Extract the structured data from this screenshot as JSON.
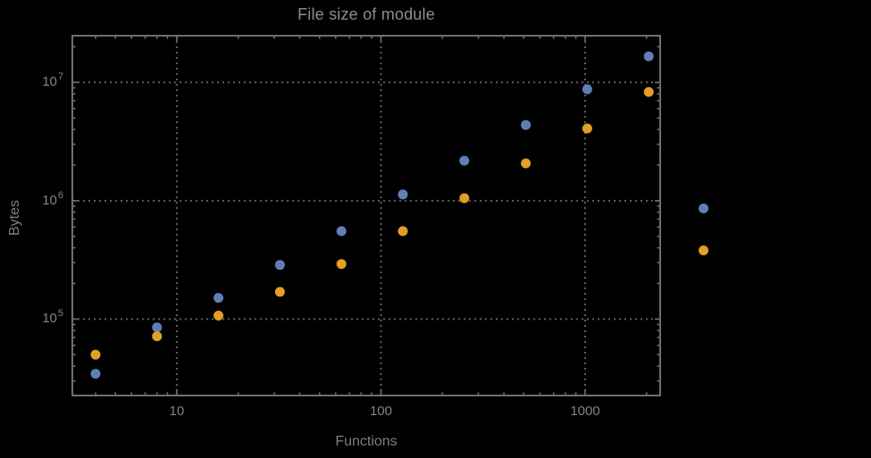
{
  "chart_data": {
    "type": "scatter",
    "title": "File size of module",
    "xlabel": "Functions",
    "ylabel": "Bytes",
    "x_scale": "log",
    "y_scale": "log",
    "xlim": [
      3.08,
      2330
    ],
    "ylim": [
      22600,
      24800000
    ],
    "grid": "dotted",
    "legend_position": "none",
    "series": [
      {
        "id": "series-1",
        "color": "#5E81B5",
        "points": [
          [
            4,
            34500
          ],
          [
            8,
            85000
          ],
          [
            16,
            151000
          ],
          [
            32,
            287000
          ],
          [
            64,
            554000
          ],
          [
            128,
            1130000
          ],
          [
            256,
            2180000
          ],
          [
            512,
            4370000
          ],
          [
            1024,
            8750000
          ],
          [
            2048,
            16600000
          ]
        ]
      },
      {
        "id": "series-2",
        "color": "#E1A025",
        "points": [
          [
            4,
            50000
          ],
          [
            8,
            71500
          ],
          [
            16,
            107000
          ],
          [
            32,
            170000
          ],
          [
            64,
            292000
          ],
          [
            128,
            554000
          ],
          [
            256,
            1050000
          ],
          [
            512,
            2070000
          ],
          [
            1024,
            4080000
          ],
          [
            2048,
            8300000
          ]
        ]
      }
    ],
    "unlabeled_right_markers": [
      {
        "series": "series-1",
        "x": 3800,
        "bytes": 860000
      },
      {
        "series": "series-2",
        "x": 3800,
        "bytes": 380000
      }
    ],
    "x_ticks": [
      {
        "value": 10,
        "label": "10"
      },
      {
        "value": 100,
        "label": "100"
      },
      {
        "value": 1000,
        "label": "1000"
      }
    ],
    "y_ticks": [
      {
        "value": 100000,
        "mantissa": "10",
        "exponent": "5"
      },
      {
        "value": 1000000,
        "mantissa": "10",
        "exponent": "6"
      },
      {
        "value": 10000000,
        "mantissa": "10",
        "exponent": "7"
      }
    ],
    "colors": {
      "background": "#000000",
      "frame": "#6f6f6f",
      "grid": "#5f5f5f",
      "title_text": "#8c8c8c",
      "axis_label_text": "#7f7f7f",
      "tick_label_text": "#838383"
    }
  }
}
